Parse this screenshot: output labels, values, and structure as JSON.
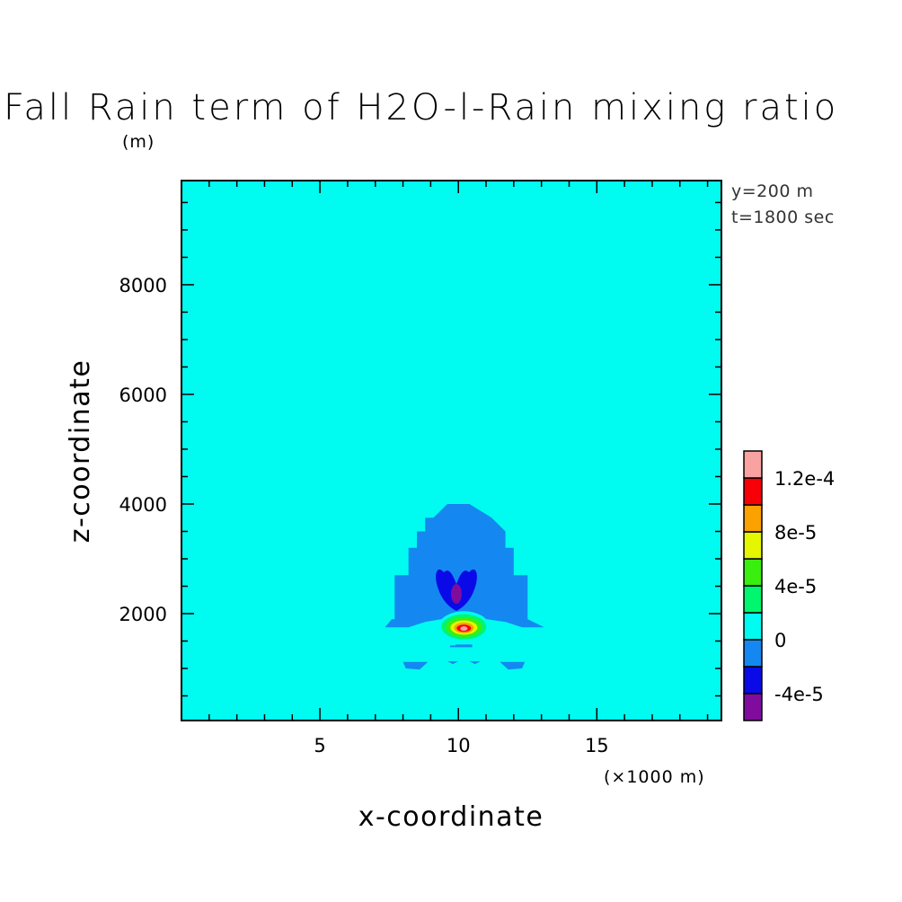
{
  "chart_data": {
    "type": "heatmap",
    "title": "Fall Rain term of H2O-l-Rain mixing ratio",
    "z_unit_label": "(m)",
    "x_unit_label": "(×1000 m)",
    "xlabel": "x-coordinate",
    "ylabel": "z-coordinate",
    "annotations": [
      "y=200 m",
      "t=1800 sec"
    ],
    "xlim": [
      0,
      19.5
    ],
    "ylim": [
      50,
      9900
    ],
    "x_ticks": [
      5,
      10,
      15
    ],
    "x_tick_labels": [
      "5",
      "10",
      "15"
    ],
    "y_ticks": [
      2000,
      4000,
      6000,
      8000
    ],
    "y_tick_labels": [
      "2000",
      "4000",
      "6000",
      "8000"
    ],
    "background_level": "0 to 2e-5",
    "colorbar": {
      "bins": [
        {
          "range": [
            "-6e-5",
            "-4e-5"
          ],
          "color": "#800c9e"
        },
        {
          "range": [
            "-4e-5",
            "-2e-5"
          ],
          "color": "#0a0ae8"
        },
        {
          "range": [
            "-2e-5",
            "0"
          ],
          "color": "#1488f0"
        },
        {
          "range": [
            "0",
            "2e-5"
          ],
          "color": "#00fbf0"
        },
        {
          "range": [
            "2e-5",
            "4e-5"
          ],
          "color": "#00f66e"
        },
        {
          "range": [
            "4e-5",
            "6e-5"
          ],
          "color": "#3aee10"
        },
        {
          "range": [
            "6e-5",
            "8e-5"
          ],
          "color": "#e4f600"
        },
        {
          "range": [
            "8e-5",
            "1e-4"
          ],
          "color": "#fba200"
        },
        {
          "range": [
            "1e-4",
            "1.2e-4"
          ],
          "color": "#f80008"
        },
        {
          "range": [
            "1.2e-4",
            "1.4e-4"
          ],
          "color": "#f8a2a2"
        }
      ],
      "labels": [
        "-4e-5",
        "0",
        "4e-5",
        "8e-5",
        "1.2e-4"
      ]
    },
    "regions": [
      {
        "name": "negative-rain-fall-zone",
        "level": "-2e-5 to 0",
        "color": "#1488f0",
        "polygon_xz": [
          [
            7.35,
            1750
          ],
          [
            7.6,
            1900
          ],
          [
            7.7,
            1900
          ],
          [
            7.7,
            2700
          ],
          [
            8.2,
            2700
          ],
          [
            8.2,
            3200
          ],
          [
            8.5,
            3200
          ],
          [
            8.5,
            3500
          ],
          [
            8.8,
            3500
          ],
          [
            8.8,
            3750
          ],
          [
            9.1,
            3750
          ],
          [
            9.6,
            4000
          ],
          [
            10.4,
            4000
          ],
          [
            11.2,
            3750
          ],
          [
            11.7,
            3500
          ],
          [
            11.7,
            3200
          ],
          [
            12.0,
            3200
          ],
          [
            12.0,
            2700
          ],
          [
            12.5,
            2700
          ],
          [
            12.5,
            1900
          ],
          [
            13.1,
            1750
          ],
          [
            12.3,
            1750
          ],
          [
            11.7,
            1850
          ],
          [
            11.0,
            1900
          ],
          [
            10.2,
            1920
          ],
          [
            9.4,
            1900
          ],
          [
            8.8,
            1850
          ],
          [
            8.2,
            1750
          ]
        ]
      },
      {
        "name": "strong-negative-core",
        "level": "-4e-5 to -2e-5",
        "color": "#0a0ae8"
      },
      {
        "name": "minimum-core",
        "level": "-6e-5 to -4e-5",
        "color": "#800c9e"
      },
      {
        "name": "positive-rain-fall-maximum",
        "level": "up to 1.4e-4",
        "color": "#f8a2a2",
        "center_xz": [
          10.2,
          1750
        ]
      },
      {
        "name": "lower-negative-patches",
        "level": "-2e-5 to 0",
        "color": "#1488f0"
      }
    ]
  }
}
